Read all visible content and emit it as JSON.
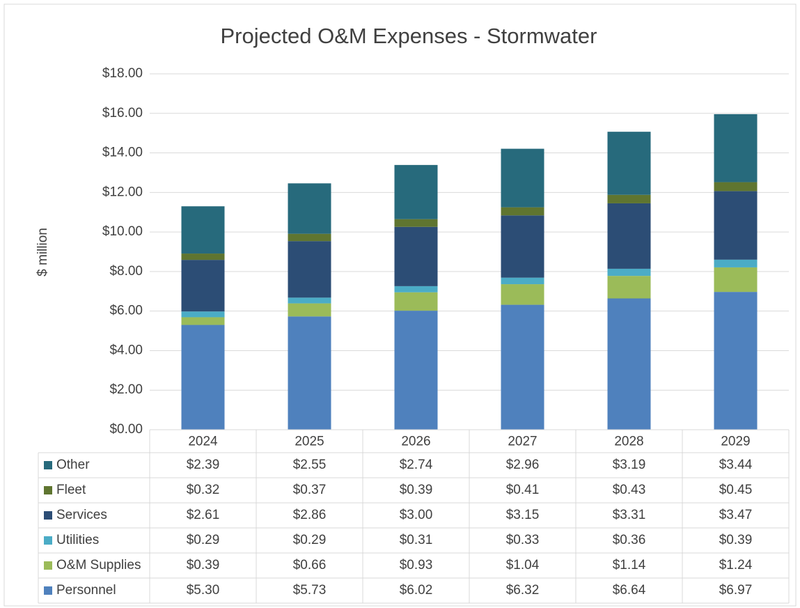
{
  "chart_data": {
    "type": "stacked_bar",
    "title": "Projected O&M Expenses - Stormwater",
    "y_label": "$ million",
    "categories": [
      "2024",
      "2025",
      "2026",
      "2027",
      "2028",
      "2029"
    ],
    "series": [
      {
        "name": "Other",
        "color": "#276a7c",
        "values": [
          2.39,
          2.55,
          2.74,
          2.96,
          3.19,
          3.44
        ],
        "value_labels": [
          "$2.39",
          "$2.55",
          "$2.74",
          "$2.96",
          "$3.19",
          "$3.44"
        ]
      },
      {
        "name": "Fleet",
        "color": "#5f7530",
        "values": [
          0.32,
          0.37,
          0.39,
          0.41,
          0.43,
          0.45
        ],
        "value_labels": [
          "$0.32",
          "$0.37",
          "$0.39",
          "$0.41",
          "$0.43",
          "$0.45"
        ]
      },
      {
        "name": "Services",
        "color": "#2c4d75",
        "values": [
          2.61,
          2.86,
          3.0,
          3.15,
          3.31,
          3.47
        ],
        "value_labels": [
          "$2.61",
          "$2.86",
          "$3.00",
          "$3.15",
          "$3.31",
          "$3.47"
        ]
      },
      {
        "name": "Utilities",
        "color": "#4bacc6",
        "values": [
          0.29,
          0.29,
          0.31,
          0.33,
          0.36,
          0.39
        ],
        "value_labels": [
          "$0.29",
          "$0.29",
          "$0.31",
          "$0.33",
          "$0.36",
          "$0.39"
        ]
      },
      {
        "name": "O&M Supplies",
        "color": "#9bbb59",
        "values": [
          0.39,
          0.66,
          0.93,
          1.04,
          1.14,
          1.24
        ],
        "value_labels": [
          "$0.39",
          "$0.66",
          "$0.93",
          "$1.04",
          "$1.14",
          "$1.24"
        ]
      },
      {
        "name": "Personnel",
        "color": "#4f81bd",
        "values": [
          5.3,
          5.73,
          6.02,
          6.32,
          6.64,
          6.97
        ],
        "value_labels": [
          "$5.30",
          "$5.73",
          "$6.02",
          "$6.32",
          "$6.64",
          "$6.97"
        ]
      }
    ],
    "ylim": [
      0,
      18
    ],
    "yticks": [
      {
        "value": 0,
        "label": "$0.00"
      },
      {
        "value": 2,
        "label": "$2.00"
      },
      {
        "value": 4,
        "label": "$4.00"
      },
      {
        "value": 6,
        "label": "$6.00"
      },
      {
        "value": 8,
        "label": "$8.00"
      },
      {
        "value": 10,
        "label": "$10.00"
      },
      {
        "value": 12,
        "label": "$12.00"
      },
      {
        "value": 14,
        "label": "$14.00"
      },
      {
        "value": 16,
        "label": "$16.00"
      },
      {
        "value": 18,
        "label": "$18.00"
      }
    ],
    "grid": true
  }
}
